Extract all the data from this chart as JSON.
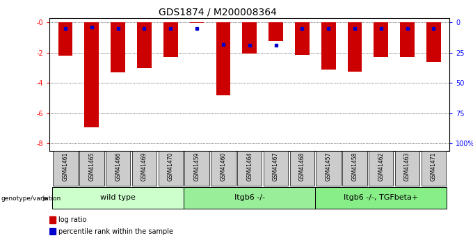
{
  "title": "GDS1874 / M200008364",
  "samples": [
    "GSM41461",
    "GSM41465",
    "GSM41466",
    "GSM41469",
    "GSM41470",
    "GSM41459",
    "GSM41460",
    "GSM41464",
    "GSM41467",
    "GSM41468",
    "GSM41457",
    "GSM41458",
    "GSM41462",
    "GSM41463",
    "GSM41471"
  ],
  "log_ratio": [
    -2.2,
    -6.9,
    -3.3,
    -3.0,
    -2.3,
    -0.05,
    -4.8,
    -2.05,
    -1.2,
    -2.15,
    -3.1,
    -3.25,
    -2.3,
    -2.3,
    -2.6
  ],
  "percentile_rank": [
    5,
    4,
    5,
    5,
    5,
    5,
    18,
    19,
    19,
    5,
    5,
    5,
    5,
    5,
    5
  ],
  "groups": [
    {
      "label": "wild type",
      "start": 0,
      "end": 5,
      "color": "#ccffcc"
    },
    {
      "label": "Itgb6 -/-",
      "start": 5,
      "end": 10,
      "color": "#99ee99"
    },
    {
      "label": "Itgb6 -/-, TGFbeta+",
      "start": 10,
      "end": 15,
      "color": "#88ee88"
    }
  ],
  "ylim_min": -8.5,
  "ylim_max": 0.3,
  "yticks": [
    0,
    -2,
    -4,
    -6,
    -8
  ],
  "yticklabels": [
    "-0",
    "-2",
    "-4",
    "-6",
    "-8"
  ],
  "right_yticks_pct": [
    0,
    25,
    50,
    75,
    100
  ],
  "right_yticklabels": [
    "0",
    "25",
    "50",
    "75",
    "100%"
  ],
  "bar_color": "#cc0000",
  "dot_color": "#0000cc",
  "label_bg": "#cccccc",
  "title_fontsize": 10,
  "tick_fontsize": 7,
  "group_fontsize": 8,
  "bar_width": 0.55
}
